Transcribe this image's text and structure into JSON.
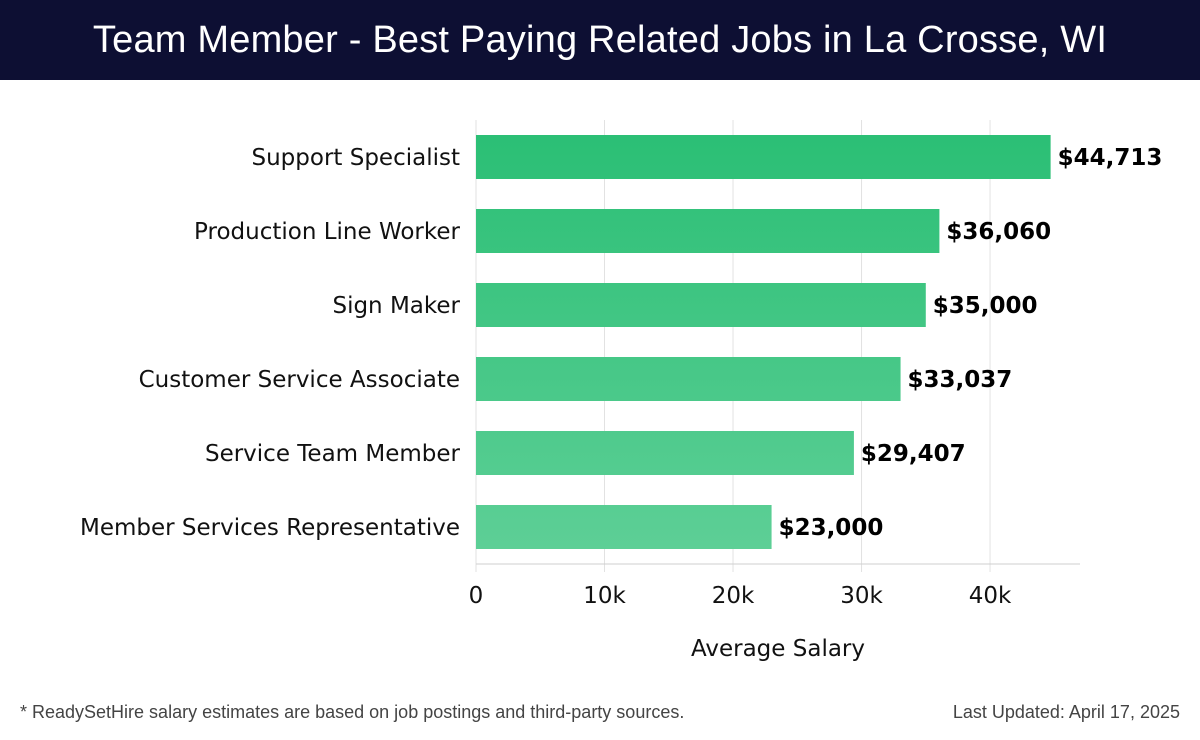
{
  "header": {
    "title": "Team Member - Best Paying Related Jobs in La Crosse, WI"
  },
  "footer": {
    "note": "* ReadySetHire salary estimates are based on job postings and third-party sources.",
    "updated": "Last Updated: April 17, 2025"
  },
  "colors": {
    "header_bg": "#0d0f33",
    "bar_top": "#2bbf75",
    "bar_bottom": "#5dcf96",
    "grid": "#e2e2e2"
  },
  "chart_data": {
    "type": "bar",
    "orientation": "horizontal",
    "categories": [
      "Support Specialist",
      "Production Line Worker",
      "Sign Maker",
      "Customer Service Associate",
      "Service Team Member",
      "Member Services Representative"
    ],
    "values": [
      44713,
      36060,
      35000,
      33037,
      29407,
      23000
    ],
    "value_labels": [
      "$44,713",
      "$36,060",
      "$35,000",
      "$33,037",
      "$29,407",
      "$23,000"
    ],
    "xlabel": "Average Salary",
    "ylabel": "",
    "xlim": [
      0,
      47000
    ],
    "xticks": [
      0,
      10000,
      20000,
      30000,
      40000
    ],
    "xtick_labels": [
      "0",
      "10k",
      "20k",
      "30k",
      "40k"
    ],
    "grid": true,
    "legend": "none"
  }
}
